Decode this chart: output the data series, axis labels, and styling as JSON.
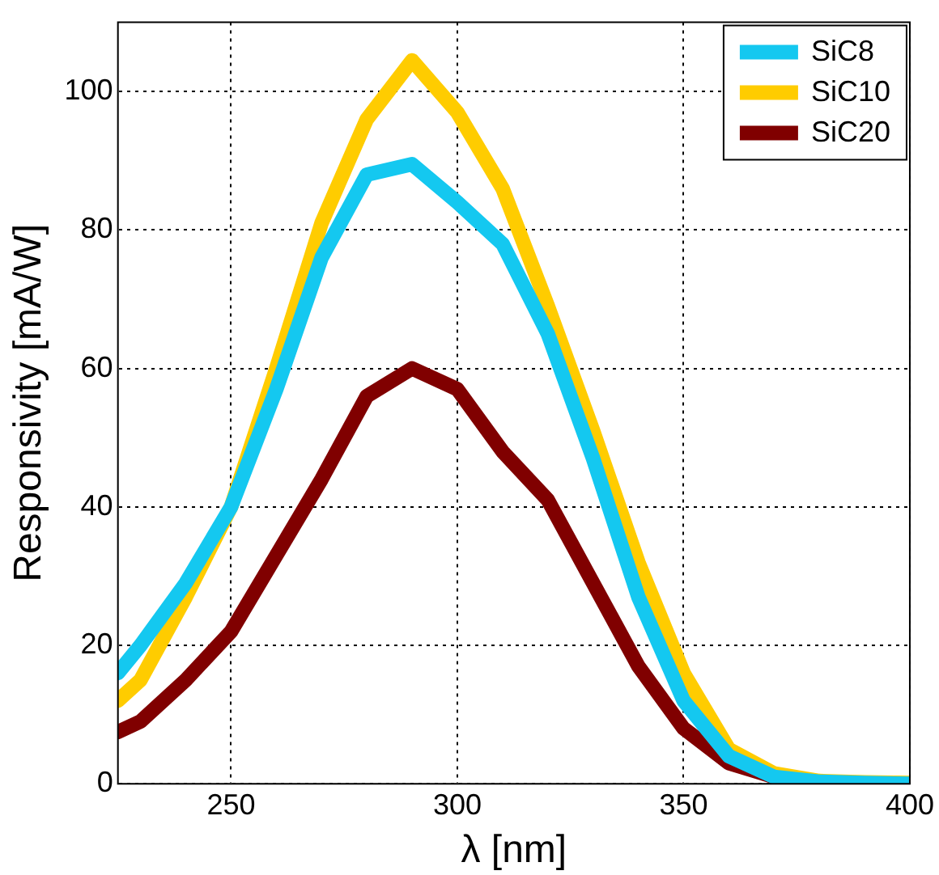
{
  "chart_data": {
    "type": "line",
    "xlabel": "λ [nm]",
    "ylabel": "Responsivity [mA/W]",
    "x": [
      225,
      230,
      240,
      250,
      260,
      270,
      280,
      290,
      300,
      310,
      320,
      330,
      340,
      350,
      360,
      370,
      380,
      390,
      400
    ],
    "series": [
      {
        "name": "SiC8",
        "color": "#14c8f0",
        "values": [
          16,
          20,
          29,
          40,
          57,
          76,
          88,
          89.5,
          84,
          78,
          65,
          47,
          27,
          12,
          4,
          1,
          0.3,
          0.1,
          0
        ]
      },
      {
        "name": "SiC10",
        "color": "#ffcc00",
        "values": [
          12,
          15,
          27,
          40,
          60,
          81,
          96,
          104.5,
          97,
          86,
          69,
          51,
          32,
          16,
          5,
          1.5,
          0.4,
          0.2,
          0.1
        ]
      },
      {
        "name": "SiC20",
        "color": "#800000",
        "values": [
          7.5,
          9,
          15,
          22,
          33,
          44,
          56,
          60,
          57,
          48,
          41,
          29,
          17,
          8,
          3,
          1,
          0.3,
          null,
          null
        ]
      }
    ],
    "xlim": [
      225,
      400
    ],
    "xticks": [
      250,
      300,
      350,
      400
    ],
    "ylim": [
      0,
      110
    ],
    "yticks": [
      0,
      20,
      40,
      60,
      80,
      100
    ],
    "grid": true,
    "legend": "top right",
    "marker": "none",
    "line_style": "solid"
  }
}
